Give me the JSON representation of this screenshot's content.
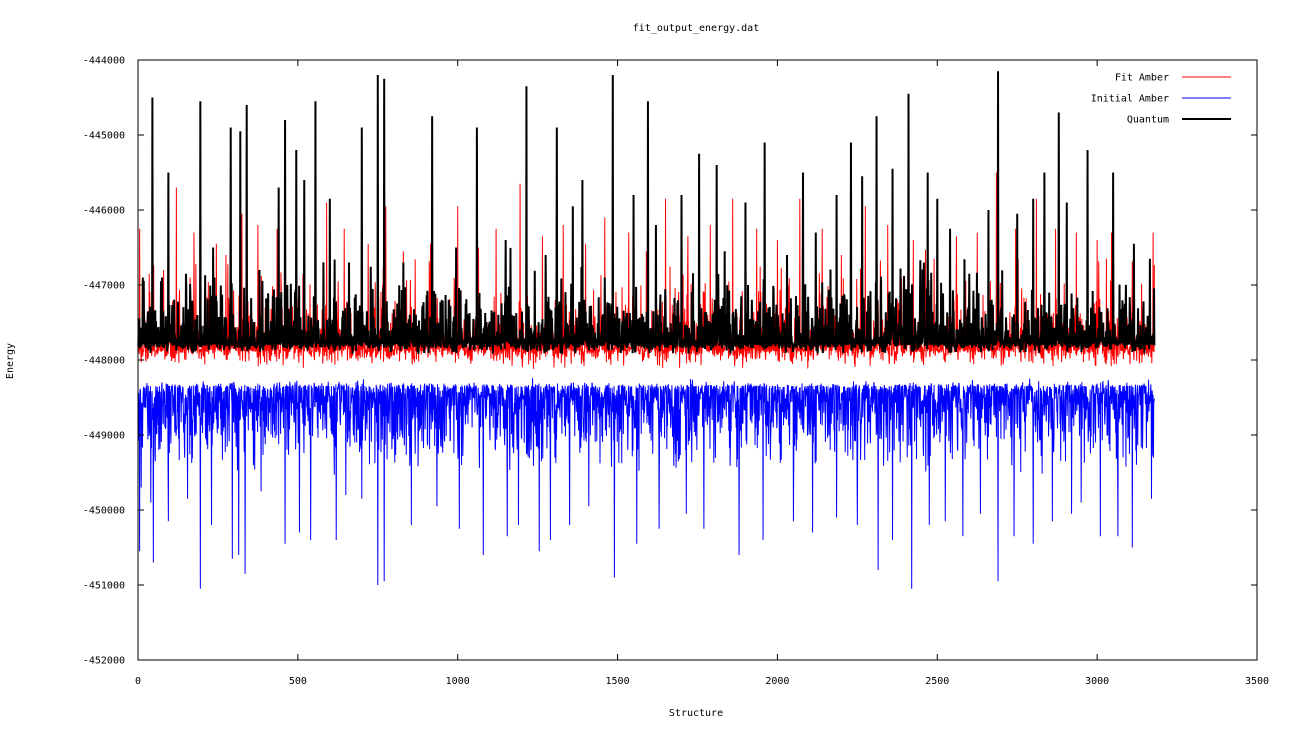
{
  "chart_data": {
    "type": "line",
    "title": "fit_output_energy.dat",
    "xlabel": "Structure",
    "ylabel": "Energy",
    "xlim": [
      0,
      3500
    ],
    "ylim": [
      -452000,
      -444000
    ],
    "xticks": [
      "0",
      "500",
      "1000",
      "1500",
      "2000",
      "2500",
      "3000",
      "3500"
    ],
    "yticks": [
      "-444000",
      "-445000",
      "-446000",
      "-447000",
      "-448000",
      "-449000",
      "-450000",
      "-451000",
      "-452000"
    ],
    "legend_position": "top-right",
    "grid": false,
    "n_points": 3180,
    "series": [
      {
        "name": "Initial Amber",
        "color": "#0000ff",
        "baseline": -448350,
        "spikes": [
          [
            5,
            -450550
          ],
          [
            10,
            -449700
          ],
          [
            40,
            -449900
          ],
          [
            48,
            -450700
          ],
          [
            95,
            -450150
          ],
          [
            155,
            -449850
          ],
          [
            195,
            -451050
          ],
          [
            230,
            -450200
          ],
          [
            295,
            -450650
          ],
          [
            315,
            -450600
          ],
          [
            335,
            -450850
          ],
          [
            385,
            -449750
          ],
          [
            460,
            -450450
          ],
          [
            505,
            -450300
          ],
          [
            540,
            -450400
          ],
          [
            620,
            -450400
          ],
          [
            650,
            -449800
          ],
          [
            700,
            -449850
          ],
          [
            750,
            -451000
          ],
          [
            770,
            -450950
          ],
          [
            855,
            -450200
          ],
          [
            935,
            -449950
          ],
          [
            1005,
            -450250
          ],
          [
            1080,
            -450600
          ],
          [
            1155,
            -450350
          ],
          [
            1190,
            -450200
          ],
          [
            1255,
            -450550
          ],
          [
            1290,
            -450400
          ],
          [
            1350,
            -450200
          ],
          [
            1410,
            -449950
          ],
          [
            1490,
            -450900
          ],
          [
            1560,
            -450450
          ],
          [
            1630,
            -450250
          ],
          [
            1715,
            -450050
          ],
          [
            1770,
            -450250
          ],
          [
            1880,
            -450600
          ],
          [
            1955,
            -450400
          ],
          [
            2050,
            -450150
          ],
          [
            2110,
            -450300
          ],
          [
            2185,
            -450100
          ],
          [
            2250,
            -450200
          ],
          [
            2315,
            -450800
          ],
          [
            2360,
            -450400
          ],
          [
            2420,
            -451050
          ],
          [
            2475,
            -450200
          ],
          [
            2525,
            -450150
          ],
          [
            2580,
            -450350
          ],
          [
            2635,
            -450050
          ],
          [
            2690,
            -450950
          ],
          [
            2740,
            -450350
          ],
          [
            2800,
            -450450
          ],
          [
            2860,
            -450150
          ],
          [
            2920,
            -450050
          ],
          [
            2950,
            -449900
          ],
          [
            3010,
            -450350
          ],
          [
            3065,
            -450350
          ],
          [
            3110,
            -450500
          ],
          [
            3170,
            -449850
          ]
        ]
      },
      {
        "name": "Fit Amber",
        "color": "#ff0000",
        "baseline": -447880,
        "spikes": [
          [
            5,
            -446250
          ],
          [
            35,
            -446850
          ],
          [
            80,
            -446800
          ],
          [
            120,
            -445700
          ],
          [
            175,
            -446300
          ],
          [
            245,
            -446450
          ],
          [
            275,
            -446600
          ],
          [
            325,
            -446050
          ],
          [
            375,
            -446200
          ],
          [
            435,
            -446250
          ],
          [
            495,
            -446050
          ],
          [
            520,
            -446300
          ],
          [
            590,
            -445900
          ],
          [
            645,
            -446250
          ],
          [
            720,
            -446450
          ],
          [
            775,
            -445950
          ],
          [
            830,
            -446550
          ],
          [
            915,
            -446450
          ],
          [
            1000,
            -445950
          ],
          [
            1065,
            -446500
          ],
          [
            1120,
            -446250
          ],
          [
            1195,
            -445650
          ],
          [
            1265,
            -446350
          ],
          [
            1330,
            -446200
          ],
          [
            1400,
            -446450
          ],
          [
            1460,
            -446100
          ],
          [
            1535,
            -446300
          ],
          [
            1590,
            -446550
          ],
          [
            1650,
            -445850
          ],
          [
            1720,
            -446350
          ],
          [
            1790,
            -446200
          ],
          [
            1860,
            -445850
          ],
          [
            1935,
            -446250
          ],
          [
            2000,
            -446400
          ],
          [
            2070,
            -445850
          ],
          [
            2140,
            -446250
          ],
          [
            2200,
            -446600
          ],
          [
            2275,
            -445950
          ],
          [
            2345,
            -446200
          ],
          [
            2425,
            -446400
          ],
          [
            2490,
            -446650
          ],
          [
            2560,
            -446350
          ],
          [
            2625,
            -446300
          ],
          [
            2685,
            -445500
          ],
          [
            2745,
            -446250
          ],
          [
            2810,
            -445850
          ],
          [
            2870,
            -446250
          ],
          [
            2935,
            -446300
          ],
          [
            3000,
            -446400
          ],
          [
            3045,
            -446300
          ],
          [
            3110,
            -446700
          ],
          [
            3175,
            -446300
          ]
        ]
      },
      {
        "name": "Quantum",
        "color": "#000000",
        "baseline": -447800,
        "spikes": [
          [
            15,
            -446900
          ],
          [
            45,
            -444500
          ],
          [
            75,
            -446900
          ],
          [
            95,
            -445500
          ],
          [
            150,
            -446850
          ],
          [
            195,
            -444550
          ],
          [
            235,
            -446500
          ],
          [
            290,
            -444900
          ],
          [
            320,
            -444950
          ],
          [
            340,
            -444600
          ],
          [
            380,
            -446800
          ],
          [
            440,
            -445700
          ],
          [
            460,
            -444800
          ],
          [
            495,
            -445200
          ],
          [
            520,
            -445600
          ],
          [
            555,
            -444550
          ],
          [
            600,
            -445850
          ],
          [
            660,
            -446700
          ],
          [
            700,
            -444900
          ],
          [
            750,
            -444200
          ],
          [
            770,
            -444250
          ],
          [
            830,
            -446700
          ],
          [
            920,
            -444750
          ],
          [
            995,
            -446500
          ],
          [
            1060,
            -444900
          ],
          [
            1150,
            -446400
          ],
          [
            1215,
            -444350
          ],
          [
            1275,
            -446600
          ],
          [
            1310,
            -444900
          ],
          [
            1360,
            -445950
          ],
          [
            1390,
            -445600
          ],
          [
            1460,
            -446900
          ],
          [
            1485,
            -444200
          ],
          [
            1550,
            -445800
          ],
          [
            1595,
            -444550
          ],
          [
            1620,
            -446200
          ],
          [
            1700,
            -445800
          ],
          [
            1755,
            -445250
          ],
          [
            1810,
            -445400
          ],
          [
            1835,
            -446550
          ],
          [
            1900,
            -445900
          ],
          [
            1960,
            -445100
          ],
          [
            2030,
            -446600
          ],
          [
            2080,
            -445500
          ],
          [
            2120,
            -446300
          ],
          [
            2185,
            -445800
          ],
          [
            2230,
            -445100
          ],
          [
            2265,
            -445550
          ],
          [
            2310,
            -444750
          ],
          [
            2360,
            -445450
          ],
          [
            2410,
            -444450
          ],
          [
            2470,
            -445500
          ],
          [
            2500,
            -445850
          ],
          [
            2540,
            -446250
          ],
          [
            2600,
            -446850
          ],
          [
            2660,
            -446000
          ],
          [
            2690,
            -444150
          ],
          [
            2750,
            -446050
          ],
          [
            2800,
            -445850
          ],
          [
            2835,
            -445500
          ],
          [
            2880,
            -444700
          ],
          [
            2905,
            -445900
          ],
          [
            2970,
            -445200
          ],
          [
            3050,
            -445500
          ],
          [
            3115,
            -446450
          ],
          [
            3165,
            -446650
          ]
        ]
      }
    ]
  }
}
